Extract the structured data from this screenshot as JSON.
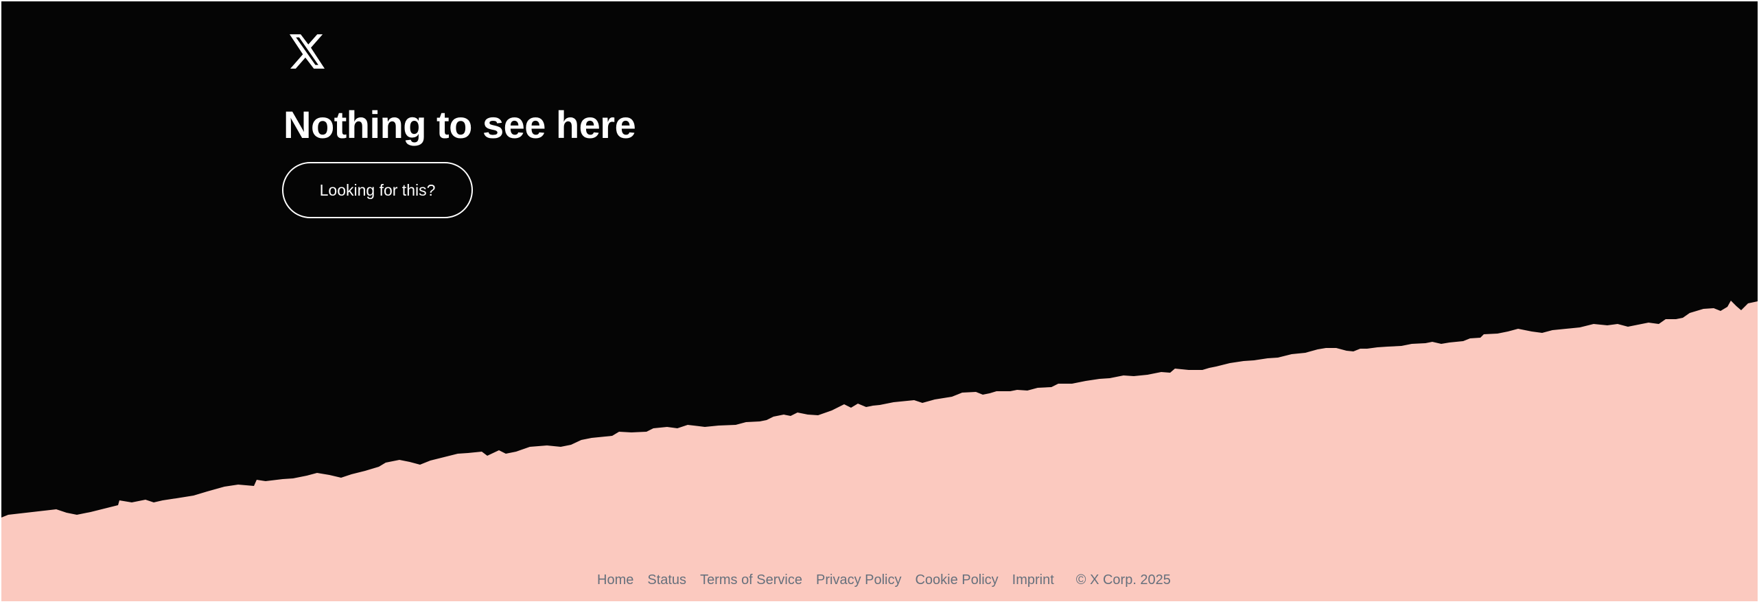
{
  "colors": {
    "background": "#050505",
    "paper": "#fbc9bf",
    "text": "#ffffff",
    "footer_text": "#66707c"
  },
  "logo": {
    "icon": "x-logo-icon"
  },
  "main": {
    "heading": "Nothing to see here",
    "button_label": "Looking for this?"
  },
  "footer": {
    "links": [
      "Home",
      "Status",
      "Terms of Service",
      "Privacy Policy",
      "Cookie Policy",
      "Imprint"
    ],
    "copyright": "© X Corp. 2025"
  }
}
